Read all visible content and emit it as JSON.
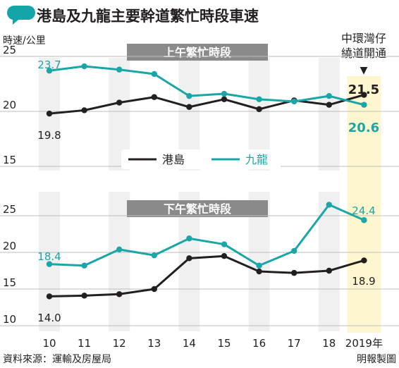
{
  "title": "港島及九龍主要幹道繁忙時段車速",
  "unit_label": "時速/公里",
  "source": "資料來源：運輸及房屋局",
  "credit": "明報製圖",
  "colors": {
    "hk_island": "#231f20",
    "kowloon": "#1aa6a6",
    "band": "#f0f0f0",
    "highlight": "#fdf6cf",
    "panel_label_bg": "#8a8a8a",
    "title_bubble": "#14a5a8"
  },
  "chart_data": [
    {
      "type": "line",
      "panel_label": "上午繁忙時段",
      "x": [
        "10",
        "11",
        "12",
        "13",
        "14",
        "15",
        "16",
        "17",
        "18",
        "2019年"
      ],
      "ylim": [
        15,
        25
      ],
      "yticks": [
        "15",
        "20",
        "25"
      ],
      "series": [
        {
          "name": "港島",
          "values": [
            19.8,
            20.1,
            20.8,
            21.3,
            20.4,
            21.1,
            20.2,
            21.0,
            20.6,
            21.5
          ]
        },
        {
          "name": "九龍",
          "values": [
            23.7,
            24.1,
            23.8,
            23.4,
            21.4,
            21.6,
            21.1,
            20.9,
            21.4,
            20.6
          ]
        }
      ],
      "labels": {
        "hk_first": "19.8",
        "hk_last": "21.5",
        "kln_first": "23.7",
        "kln_last": "20.6"
      },
      "annotation": {
        "line1": "中環灣仔",
        "line2": "繞道開通",
        "arrow": "▼"
      },
      "legend": [
        {
          "name": "港島"
        },
        {
          "name": "九龍"
        }
      ]
    },
    {
      "type": "line",
      "panel_label": "下午繁忙時段",
      "x": [
        "10",
        "11",
        "12",
        "13",
        "14",
        "15",
        "16",
        "17",
        "18",
        "2019年"
      ],
      "ylim": [
        10,
        25
      ],
      "yticks": [
        "10",
        "15",
        "20",
        "25"
      ],
      "series": [
        {
          "name": "港島",
          "values": [
            14.0,
            14.1,
            14.3,
            15.0,
            19.2,
            19.5,
            17.4,
            17.2,
            17.5,
            18.9
          ]
        },
        {
          "name": "九龍",
          "values": [
            18.4,
            18.2,
            20.4,
            19.6,
            21.9,
            21.1,
            18.2,
            20.2,
            26.5,
            24.4
          ]
        }
      ],
      "labels": {
        "hk_first": "14.0",
        "hk_last": "18.9",
        "kln_first": "18.4",
        "kln_last": "24.4"
      }
    }
  ]
}
